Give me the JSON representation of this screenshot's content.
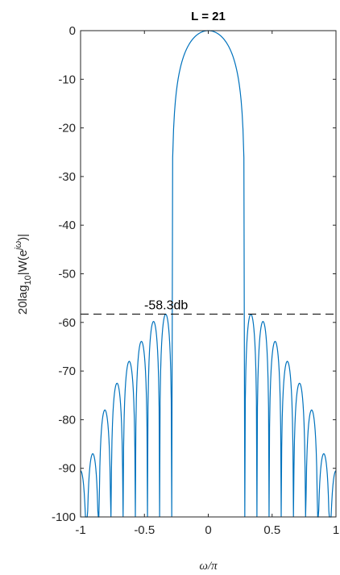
{
  "chart_data": {
    "type": "line",
    "title": "L = 21",
    "xlabel": "ω/π",
    "ylabel_parts": {
      "main": "20lag",
      "sub": "10",
      "mid": "|W(e",
      "sup": "jω",
      "end": ")|"
    },
    "xlim": [
      -1,
      1
    ],
    "ylim": [
      -100,
      0
    ],
    "x_ticks": [
      -1,
      -0.5,
      0,
      0.5,
      1
    ],
    "x_tick_labels": [
      "-1",
      "-0.5",
      "0",
      "0.5",
      "1"
    ],
    "y_ticks": [
      0,
      -10,
      -20,
      -30,
      -40,
      -50,
      -60,
      -70,
      -80,
      -90,
      -100
    ],
    "y_tick_labels": [
      "0",
      "-10",
      "-20",
      "-30",
      "-40",
      "-50",
      "-60",
      "-70",
      "-80",
      "-90",
      "-100"
    ],
    "grid": false,
    "series": [
      {
        "color": "#0072BD",
        "style": "solid",
        "mainlobe_edge": 0.286,
        "sidelobes": [
          {
            "x_from": 0.286,
            "x_to": 0.381,
            "peak": -58.3
          },
          {
            "x_from": 0.381,
            "x_to": 0.476,
            "peak": -59.8
          },
          {
            "x_from": 0.476,
            "x_to": 0.571,
            "peak": -63.9
          },
          {
            "x_from": 0.571,
            "x_to": 0.667,
            "peak": -68.0
          },
          {
            "x_from": 0.667,
            "x_to": 0.762,
            "peak": -72.5
          },
          {
            "x_from": 0.762,
            "x_to": 0.857,
            "peak": -78.0
          },
          {
            "x_from": 0.857,
            "x_to": 0.952,
            "peak": -87.0
          }
        ]
      }
    ],
    "reference_line": {
      "y": -58.3,
      "color": "#000000",
      "style": "dashed"
    },
    "annotations": [
      {
        "text": "-58.3db",
        "x": -0.33,
        "y": -58.3
      }
    ]
  }
}
